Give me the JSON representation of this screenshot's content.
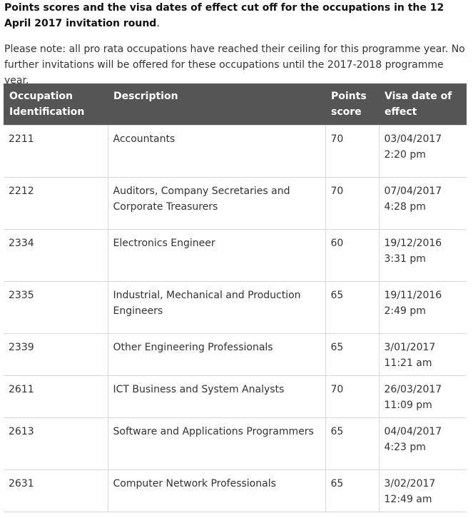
{
  "heading": {
    "main": "Points scores and the visa dates of effect cut off for the occupations in the 12 April 2017 invitation round",
    "suffix": "."
  },
  "note": "Please note: all pro rata occupations have reached their ceiling for this programme year. No further invitations will be offered for these occupations until the 2017-2018 programme year.",
  "table": {
    "headers": [
      "Occupation Identification",
      "Description",
      "Points score",
      "Visa date of effect"
    ],
    "rows": [
      {
        "id": "2211",
        "description": "Accountants",
        "points": "70",
        "visa_date": "03/04/2017 2:20 pm"
      },
      {
        "id": "2212",
        "description": "Auditors, Company Secretaries and Corporate Treasurers",
        "points": "70",
        "visa_date": "07/04/2017 4:28 pm"
      },
      {
        "id": "2334",
        "description": "Electronics Engineer",
        "points": "60",
        "visa_date": "19/12/2016 3:31 pm"
      },
      {
        "id": "2335",
        "description": "Industrial, Mechanical and Production Engineers",
        "points": "65",
        "visa_date": "19/11/2016 2:49 pm"
      },
      {
        "id": "2339",
        "description": "Other Engineering Professionals",
        "points": "65",
        "visa_date": "3/01/2017 11:21 am"
      },
      {
        "id": "2611",
        "description": "ICT Business and System Analysts",
        "points": "70",
        "visa_date": "26/03/2017 11:09 pm"
      },
      {
        "id": "2613",
        "description": "Software and Applications Programmers",
        "points": "65",
        "visa_date": "04/04/2017 4:23 pm"
      },
      {
        "id": "2631",
        "description": "Computer Network Professionals",
        "points": "65",
        "visa_date": "3/02/2017 12:49 am"
      }
    ]
  }
}
